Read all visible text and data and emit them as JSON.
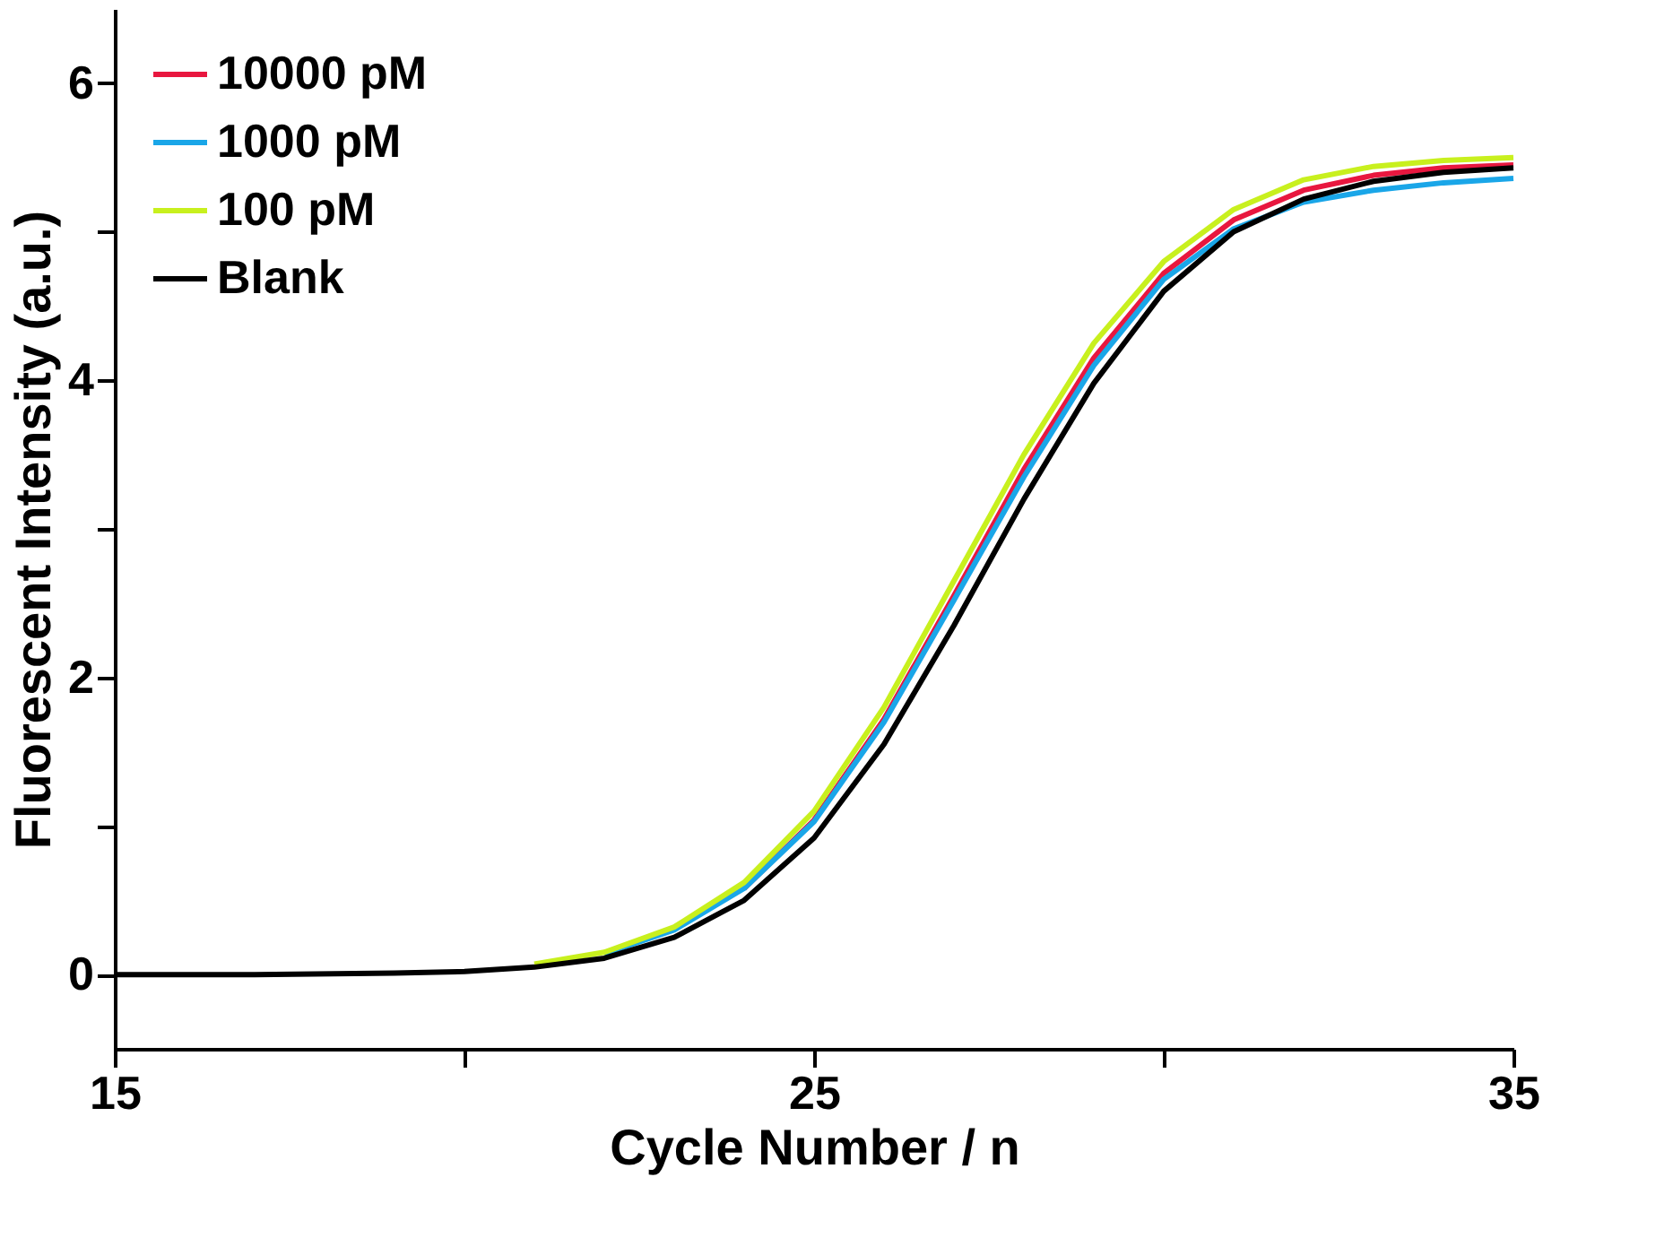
{
  "chart_data": {
    "type": "line",
    "xlabel": "Cycle Number / n",
    "ylabel": "Fluorescent Intensity (a.u.)",
    "x": [
      15,
      17,
      19,
      20,
      21,
      22,
      23,
      24,
      25,
      26,
      27,
      28,
      29,
      30,
      31,
      32,
      33,
      34,
      35
    ],
    "series": [
      {
        "name": "10000 pM",
        "color": "#e8173f",
        "values": [
          null,
          null,
          null,
          null,
          null,
          null,
          null,
          0.58,
          1.04,
          1.72,
          2.55,
          3.4,
          4.15,
          4.72,
          5.08,
          5.28,
          5.38,
          5.43,
          5.45
        ]
      },
      {
        "name": "1000 pM",
        "color": "#1aa6e8",
        "values": [
          null,
          null,
          null,
          null,
          null,
          0.14,
          0.3,
          0.58,
          1.03,
          1.7,
          2.52,
          3.35,
          4.1,
          4.68,
          5.02,
          5.2,
          5.28,
          5.33,
          5.36
        ]
      },
      {
        "name": "100 pM",
        "color": "#c8f01e",
        "values": [
          null,
          null,
          null,
          null,
          0.07,
          0.15,
          0.32,
          0.62,
          1.1,
          1.8,
          2.65,
          3.5,
          4.25,
          4.8,
          5.15,
          5.35,
          5.44,
          5.48,
          5.5
        ]
      },
      {
        "name": "Blank",
        "color": "#000000",
        "values": [
          0,
          0,
          0.01,
          0.02,
          0.05,
          0.11,
          0.25,
          0.5,
          0.92,
          1.55,
          2.35,
          3.2,
          3.98,
          4.6,
          5.0,
          5.22,
          5.34,
          5.4,
          5.43
        ]
      }
    ],
    "xlim": [
      15,
      35
    ],
    "xticks": [
      15,
      {
        "value": 20,
        "label": null
      },
      25,
      {
        "value": 30,
        "label": null
      },
      35
    ],
    "ylim": [
      -0.5,
      6.5
    ],
    "yticks": [
      0,
      {
        "value": 1,
        "label": null
      },
      2,
      {
        "value": 3,
        "label": null
      },
      4,
      {
        "value": 5,
        "label": null
      },
      6
    ],
    "legend": "top left",
    "grid": false,
    "marker": "none",
    "line_style": "solid"
  }
}
